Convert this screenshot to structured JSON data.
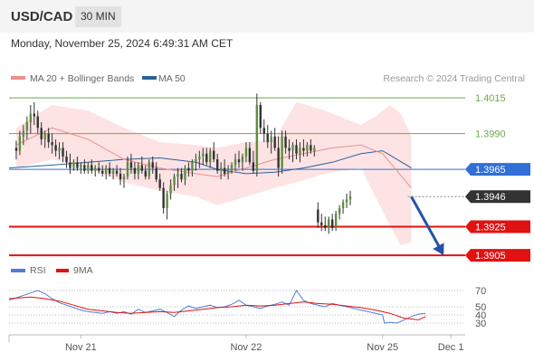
{
  "header": {
    "symbol": "USD/CAD",
    "timeframe": "30 MIN",
    "datetime": "Monday, November 25, 2024 6:49:31 AM CET"
  },
  "legend": {
    "ma20_label": "MA 20 + Bollinger Bands",
    "ma50_label": "MA 50",
    "credit": "Research © 2024 Trading Central",
    "rsi_label": "RSI",
    "ma9_label": "9MA"
  },
  "colors": {
    "bollinger_fill": "#fde3e3",
    "ma20": "#f08f8f",
    "ma50": "#2e5f9b",
    "resistance_green": "#6fa84a",
    "current_line": "#2f6fd6",
    "support_red": "#e01212",
    "arrow": "#2352a8",
    "rsi": "#4f7fd6",
    "rsi_ma": "#e01212"
  },
  "chart_data": [
    {
      "type": "candlestick",
      "ylim": [
        1.39,
        1.4022
      ],
      "x_ticks": [
        "Nov 21",
        "Nov 22",
        "Nov 25",
        "Dec 1"
      ],
      "x_ticks_pos": [
        18,
        64,
        102,
        121
      ],
      "x_range": [
        -2,
        125
      ],
      "levels": [
        {
          "value": 1.4015,
          "label": "1.4015",
          "style": "green-line"
        },
        {
          "value": 1.399,
          "label": "1.3990",
          "style": "green-line"
        },
        {
          "value": 1.3965,
          "label": "1.3965",
          "style": "blue-line"
        },
        {
          "value": 1.3946,
          "label": "1.3946",
          "style": "current-dotted"
        },
        {
          "value": 1.3925,
          "label": "1.3925",
          "style": "red-line"
        },
        {
          "value": 1.3905,
          "label": "1.3905",
          "style": "red-line"
        }
      ],
      "projection": {
        "from": [
          110,
          1.3946
        ],
        "to": [
          119,
          1.3905
        ]
      },
      "ohlc": [
        [
          1.398,
          1.3985,
          1.3972,
          1.3978
        ],
        [
          1.3978,
          1.3992,
          1.3975,
          1.3988
        ],
        [
          1.3988,
          1.3996,
          1.3982,
          1.3992
        ],
        [
          1.3992,
          1.4002,
          1.3986,
          1.3998
        ],
        [
          1.3998,
          1.401,
          1.399,
          1.4004
        ],
        [
          1.4004,
          1.4012,
          1.3996,
          1.4002
        ],
        [
          1.4002,
          1.4006,
          1.399,
          1.3994
        ],
        [
          1.3994,
          1.3998,
          1.3982,
          1.3986
        ],
        [
          1.3986,
          1.3992,
          1.398,
          1.399
        ],
        [
          1.399,
          1.3994,
          1.398,
          1.3984
        ],
        [
          1.3984,
          1.399,
          1.3976,
          1.3982
        ],
        [
          1.3982,
          1.3986,
          1.3974,
          1.3978
        ],
        [
          1.3978,
          1.3984,
          1.3972,
          1.398
        ],
        [
          1.398,
          1.3984,
          1.397,
          1.3974
        ],
        [
          1.3974,
          1.3978,
          1.3966,
          1.397
        ],
        [
          1.397,
          1.3976,
          1.3962,
          1.3966
        ],
        [
          1.3966,
          1.3972,
          1.3964,
          1.397
        ],
        [
          1.397,
          1.3974,
          1.3964,
          1.3966
        ],
        [
          1.3966,
          1.397,
          1.3962,
          1.3968
        ],
        [
          1.3968,
          1.3972,
          1.3962,
          1.3964
        ],
        [
          1.3964,
          1.397,
          1.3962,
          1.3968
        ],
        [
          1.3968,
          1.3972,
          1.3962,
          1.3964
        ],
        [
          1.3964,
          1.3968,
          1.396,
          1.3966
        ],
        [
          1.3966,
          1.397,
          1.3962,
          1.3964
        ],
        [
          1.3964,
          1.3968,
          1.396,
          1.3962
        ],
        [
          1.3962,
          1.3968,
          1.3958,
          1.3966
        ],
        [
          1.3966,
          1.397,
          1.396,
          1.3962
        ],
        [
          1.3962,
          1.3966,
          1.3958,
          1.3964
        ],
        [
          1.3964,
          1.3968,
          1.396,
          1.3962
        ],
        [
          1.3962,
          1.3966,
          1.3954,
          1.3958
        ],
        [
          1.3958,
          1.3962,
          1.3952,
          1.396
        ],
        [
          1.396,
          1.3974,
          1.3958,
          1.397
        ],
        [
          1.397,
          1.3976,
          1.3962,
          1.3966
        ],
        [
          1.3966,
          1.397,
          1.3958,
          1.3962
        ],
        [
          1.3962,
          1.397,
          1.3958,
          1.3968
        ],
        [
          1.3968,
          1.3974,
          1.3962,
          1.3964
        ],
        [
          1.3964,
          1.3968,
          1.3958,
          1.396
        ],
        [
          1.396,
          1.3972,
          1.3958,
          1.397
        ],
        [
          1.397,
          1.3974,
          1.3962,
          1.3966
        ],
        [
          1.3966,
          1.397,
          1.3956,
          1.3958
        ],
        [
          1.3958,
          1.3962,
          1.395,
          1.3952
        ],
        [
          1.3952,
          1.3956,
          1.3934,
          1.3938
        ],
        [
          1.3938,
          1.395,
          1.393,
          1.3948
        ],
        [
          1.3948,
          1.3958,
          1.3944,
          1.3954
        ],
        [
          1.3954,
          1.3962,
          1.395,
          1.396
        ],
        [
          1.396,
          1.3966,
          1.3952,
          1.3962
        ],
        [
          1.3962,
          1.3966,
          1.3956,
          1.3958
        ],
        [
          1.3958,
          1.3968,
          1.3954,
          1.3966
        ],
        [
          1.3966,
          1.397,
          1.396,
          1.3964
        ],
        [
          1.3964,
          1.3972,
          1.396,
          1.397
        ],
        [
          1.397,
          1.3976,
          1.3964,
          1.3972
        ],
        [
          1.3972,
          1.3978,
          1.3966,
          1.3974
        ],
        [
          1.3974,
          1.398,
          1.3968,
          1.3976
        ],
        [
          1.3976,
          1.398,
          1.3968,
          1.397
        ],
        [
          1.397,
          1.398,
          1.3966,
          1.3978
        ],
        [
          1.3978,
          1.3984,
          1.397,
          1.3972
        ],
        [
          1.3972,
          1.3976,
          1.3962,
          1.3964
        ],
        [
          1.3964,
          1.397,
          1.3958,
          1.3966
        ],
        [
          1.3966,
          1.3972,
          1.396,
          1.3962
        ],
        [
          1.3962,
          1.3968,
          1.3958,
          1.3964
        ],
        [
          1.3964,
          1.397,
          1.3962,
          1.3968
        ],
        [
          1.3968,
          1.3976,
          1.3964,
          1.3972
        ],
        [
          1.3972,
          1.3978,
          1.3966,
          1.397
        ],
        [
          1.397,
          1.3976,
          1.3964,
          1.3974
        ],
        [
          1.3974,
          1.3984,
          1.397,
          1.398
        ],
        [
          1.398,
          1.3984,
          1.3968,
          1.397
        ],
        [
          1.397,
          1.3978,
          1.3962,
          1.3964
        ],
        [
          1.3964,
          1.4018,
          1.396,
          1.401
        ],
        [
          1.401,
          1.4012,
          1.399,
          1.3994
        ],
        [
          1.3994,
          1.4,
          1.3984,
          1.399
        ],
        [
          1.399,
          1.3996,
          1.398,
          1.3984
        ],
        [
          1.3984,
          1.3992,
          1.3976,
          1.3988
        ],
        [
          1.3988,
          1.3994,
          1.3978,
          1.398
        ],
        [
          1.398,
          1.3988,
          1.396,
          1.3966
        ],
        [
          1.3966,
          1.3992,
          1.3962,
          1.3988
        ],
        [
          1.3988,
          1.3992,
          1.3976,
          1.398
        ],
        [
          1.398,
          1.3986,
          1.3972,
          1.3978
        ],
        [
          1.3978,
          1.3984,
          1.397,
          1.3982
        ],
        [
          1.3982,
          1.3986,
          1.3972,
          1.3976
        ],
        [
          1.3976,
          1.3984,
          1.397,
          1.398
        ],
        [
          1.398,
          1.3986,
          1.3974,
          1.3978
        ],
        [
          1.3978,
          1.3984,
          1.3974,
          1.3982
        ],
        [
          1.3982,
          1.3986,
          1.3976,
          1.3978
        ],
        [
          1.3978,
          1.3982,
          1.3974,
          1.398
        ],
        [
          1.3937,
          1.3942,
          1.3924,
          1.3928
        ],
        [
          1.3928,
          1.3934,
          1.3922,
          1.3926
        ],
        [
          1.3926,
          1.3932,
          1.3922,
          1.3924
        ],
        [
          1.3924,
          1.3932,
          1.392,
          1.393
        ],
        [
          1.393,
          1.3934,
          1.3922,
          1.3924
        ],
        [
          1.3924,
          1.3936,
          1.3922,
          1.3934
        ],
        [
          1.3934,
          1.394,
          1.393,
          1.3938
        ],
        [
          1.3938,
          1.3944,
          1.3934,
          1.3942
        ],
        [
          1.3942,
          1.3948,
          1.3938,
          1.3944
        ],
        [
          1.3944,
          1.395,
          1.394,
          1.3946
        ]
      ],
      "ma20": [
        [
          0,
          1.3982
        ],
        [
          10,
          1.3994
        ],
        [
          20,
          1.3986
        ],
        [
          30,
          1.3972
        ],
        [
          40,
          1.3966
        ],
        [
          50,
          1.3962
        ],
        [
          56,
          1.396
        ],
        [
          64,
          1.3966
        ],
        [
          72,
          1.3972
        ],
        [
          80,
          1.3976
        ],
        [
          88,
          1.398
        ],
        [
          96,
          1.3982
        ],
        [
          102,
          1.3976
        ],
        [
          106,
          1.3964
        ],
        [
          110,
          1.3952
        ]
      ],
      "bb_upper": [
        [
          0,
          1.3994
        ],
        [
          10,
          1.401
        ],
        [
          20,
          1.4006
        ],
        [
          30,
          1.3994
        ],
        [
          40,
          1.3984
        ],
        [
          50,
          1.3982
        ],
        [
          56,
          1.398
        ],
        [
          64,
          1.3984
        ],
        [
          72,
          1.3986
        ],
        [
          78,
          1.4012
        ],
        [
          86,
          1.4006
        ],
        [
          96,
          1.3996
        ],
        [
          100,
          1.4002
        ],
        [
          104,
          1.401
        ],
        [
          107,
          1.4004
        ],
        [
          110,
          1.3988
        ]
      ],
      "bb_lower": [
        [
          0,
          1.3966
        ],
        [
          10,
          1.3972
        ],
        [
          20,
          1.3966
        ],
        [
          30,
          1.3956
        ],
        [
          40,
          1.395
        ],
        [
          50,
          1.3946
        ],
        [
          56,
          1.394
        ],
        [
          64,
          1.3946
        ],
        [
          72,
          1.3952
        ],
        [
          78,
          1.3956
        ],
        [
          86,
          1.3962
        ],
        [
          96,
          1.3966
        ],
        [
          100,
          1.3946
        ],
        [
          104,
          1.3926
        ],
        [
          107,
          1.3912
        ],
        [
          110,
          1.3914
        ]
      ],
      "ma50": [
        [
          -2,
          1.3966
        ],
        [
          10,
          1.3968
        ],
        [
          20,
          1.397
        ],
        [
          30,
          1.3972
        ],
        [
          40,
          1.3973
        ],
        [
          50,
          1.397
        ],
        [
          56,
          1.3965
        ],
        [
          64,
          1.3962
        ],
        [
          72,
          1.3963
        ],
        [
          80,
          1.3966
        ],
        [
          88,
          1.397
        ],
        [
          96,
          1.3976
        ],
        [
          102,
          1.3978
        ],
        [
          106,
          1.3972
        ],
        [
          110,
          1.3966
        ]
      ]
    },
    {
      "type": "line",
      "ylim": [
        20,
        80
      ],
      "y_ticks": [
        70,
        50,
        40,
        30
      ],
      "series": [
        {
          "name": "RSI",
          "values": [
            [
              -2,
              58
            ],
            [
              2,
              64
            ],
            [
              4,
              67
            ],
            [
              6,
              70
            ],
            [
              8,
              66
            ],
            [
              10,
              60
            ],
            [
              12,
              55
            ],
            [
              14,
              52
            ],
            [
              16,
              49
            ],
            [
              18,
              46
            ],
            [
              20,
              44
            ],
            [
              22,
              43
            ],
            [
              24,
              42
            ],
            [
              26,
              44
            ],
            [
              28,
              42
            ],
            [
              30,
              44
            ],
            [
              32,
              41
            ],
            [
              34,
              47
            ],
            [
              36,
              43
            ],
            [
              38,
              45
            ],
            [
              40,
              47
            ],
            [
              42,
              43
            ],
            [
              44,
              38
            ],
            [
              46,
              46
            ],
            [
              48,
              51
            ],
            [
              50,
              48
            ],
            [
              52,
              50
            ],
            [
              54,
              52
            ],
            [
              56,
              49
            ],
            [
              58,
              50
            ],
            [
              60,
              53
            ],
            [
              62,
              58
            ],
            [
              64,
              52
            ],
            [
              66,
              50
            ],
            [
              68,
              48
            ],
            [
              70,
              51
            ],
            [
              72,
              53
            ],
            [
              74,
              56
            ],
            [
              76,
              52
            ],
            [
              78,
              70
            ],
            [
              80,
              58
            ],
            [
              82,
              54
            ],
            [
              84,
              52
            ],
            [
              86,
              50
            ],
            [
              88,
              54
            ],
            [
              90,
              52
            ],
            [
              92,
              50
            ],
            [
              94,
              48
            ],
            [
              96,
              46
            ],
            [
              98,
              44
            ],
            [
              100,
              42
            ],
            [
              102,
              40
            ],
            [
              102.5,
              30
            ],
            [
              104,
              31
            ],
            [
              106,
              30
            ],
            [
              108,
              34
            ],
            [
              110,
              38
            ],
            [
              112,
              41
            ],
            [
              114,
              42
            ]
          ]
        },
        {
          "name": "9MA",
          "values": [
            [
              -2,
              60
            ],
            [
              4,
              62
            ],
            [
              8,
              60
            ],
            [
              12,
              57
            ],
            [
              16,
              52
            ],
            [
              20,
              47
            ],
            [
              24,
              45
            ],
            [
              28,
              43
            ],
            [
              32,
              42
            ],
            [
              36,
              43
            ],
            [
              40,
              44
            ],
            [
              44,
              43
            ],
            [
              48,
              45
            ],
            [
              52,
              47
            ],
            [
              56,
              49
            ],
            [
              60,
              50
            ],
            [
              64,
              52
            ],
            [
              68,
              51
            ],
            [
              72,
              52
            ],
            [
              76,
              54
            ],
            [
              80,
              56
            ],
            [
              84,
              54
            ],
            [
              88,
              53
            ],
            [
              92,
              51
            ],
            [
              96,
              49
            ],
            [
              100,
              46
            ],
            [
              104,
              42
            ],
            [
              108,
              36
            ],
            [
              112,
              34
            ],
            [
              114,
              38
            ]
          ]
        }
      ]
    }
  ]
}
